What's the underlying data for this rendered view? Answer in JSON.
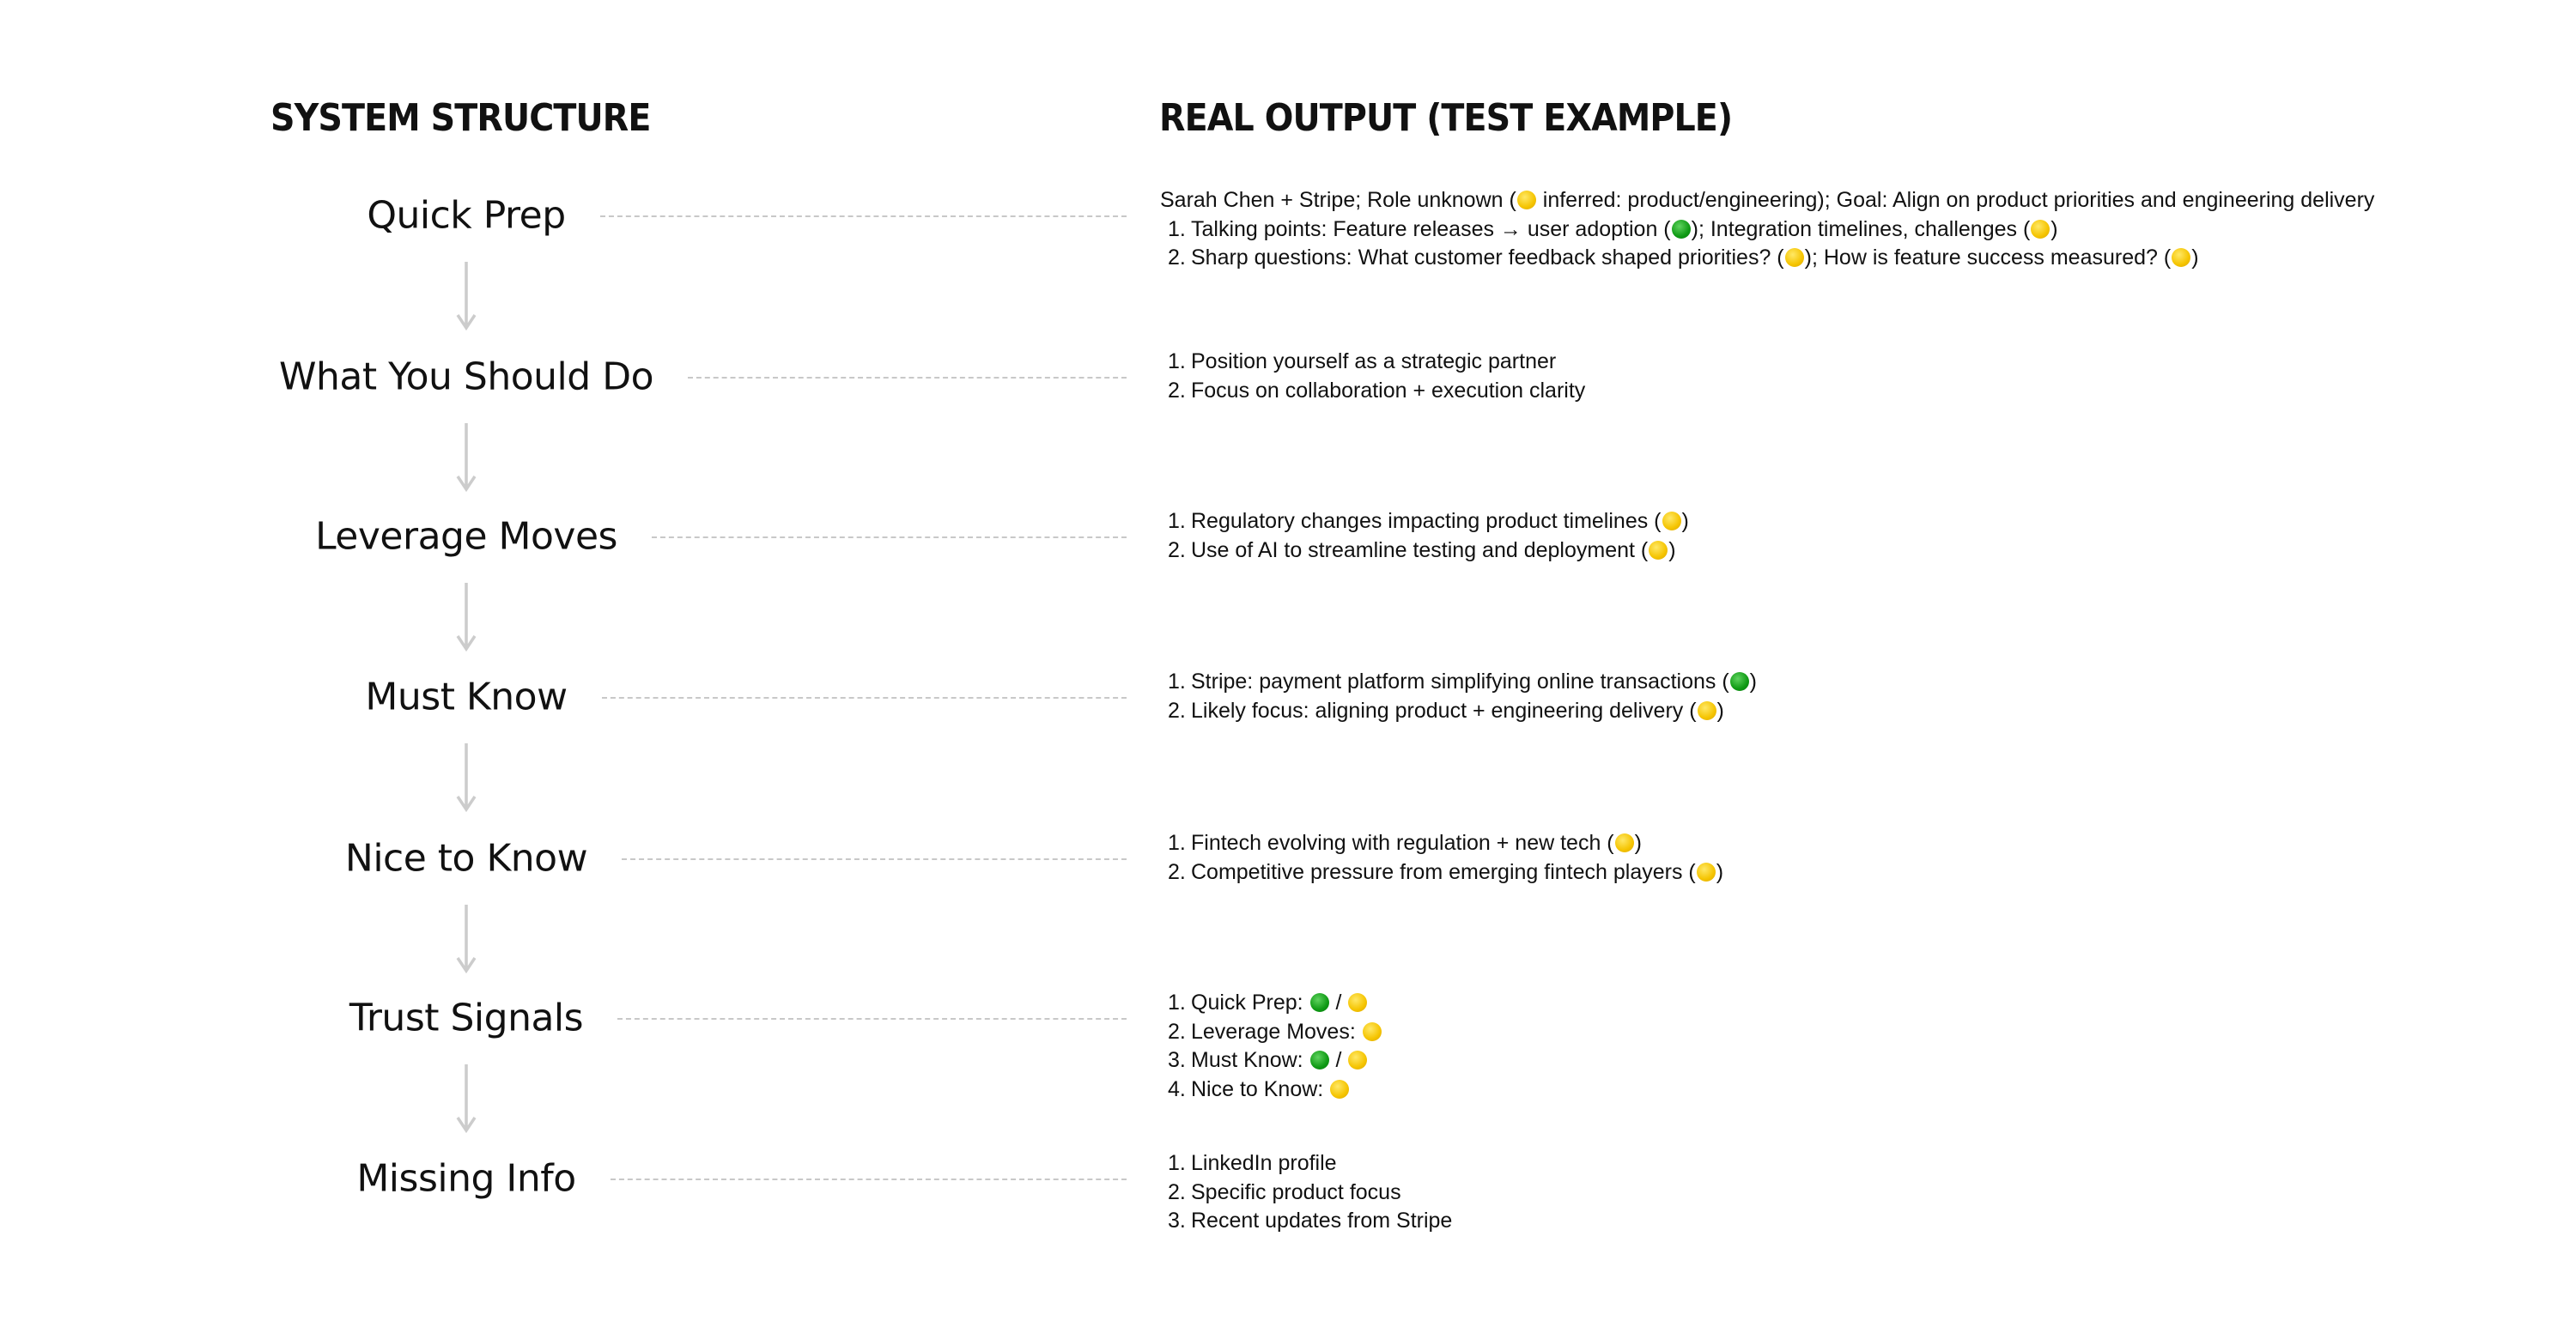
{
  "headings": {
    "left": "SYSTEM STRUCTURE",
    "right": "REAL OUTPUT (TEST EXAMPLE)"
  },
  "colors": {
    "yellow": "#f5c400",
    "green": "#0f9a14",
    "arrow": "#cccccc",
    "dash": "#c8c8c8"
  },
  "sections": [
    {
      "label": "Quick Prep",
      "lines": [
        {
          "parts": [
            {
              "t": "Sarah Chen + Stripe; Role unknown ("
            },
            {
              "dot": "yellow"
            },
            {
              "t": " inferred: product/engineering); Goal: Align on product priorities and engineering delivery"
            }
          ]
        },
        {
          "num": "1.",
          "parts": [
            {
              "t": "Talking points: Feature releases → user adoption ("
            },
            {
              "dot": "green"
            },
            {
              "t": "); Integration timelines, challenges ("
            },
            {
              "dot": "yellow"
            },
            {
              "t": ")"
            }
          ]
        },
        {
          "num": "2.",
          "parts": [
            {
              "t": "Sharp questions: What customer feedback shaped priorities? ("
            },
            {
              "dot": "yellow"
            },
            {
              "t": "); How is feature success measured? ("
            },
            {
              "dot": "yellow"
            },
            {
              "t": ")"
            }
          ]
        }
      ]
    },
    {
      "label": "What You Should Do",
      "lines": [
        {
          "num": "1.",
          "parts": [
            {
              "t": "Position yourself as a strategic partner"
            }
          ]
        },
        {
          "num": "2.",
          "parts": [
            {
              "t": "Focus on collaboration + execution clarity"
            }
          ]
        }
      ]
    },
    {
      "label": "Leverage Moves",
      "lines": [
        {
          "num": "1.",
          "parts": [
            {
              "t": "Regulatory changes impacting product timelines ("
            },
            {
              "dot": "yellow"
            },
            {
              "t": ")"
            }
          ]
        },
        {
          "num": "2.",
          "parts": [
            {
              "t": "Use of AI to streamline testing and deployment ("
            },
            {
              "dot": "yellow"
            },
            {
              "t": ")"
            }
          ]
        }
      ]
    },
    {
      "label": "Must Know",
      "lines": [
        {
          "num": "1.",
          "parts": [
            {
              "t": "Stripe: payment platform simplifying online transactions ("
            },
            {
              "dot": "green"
            },
            {
              "t": ")"
            }
          ]
        },
        {
          "num": "2.",
          "parts": [
            {
              "t": "Likely focus: aligning product + engineering delivery ("
            },
            {
              "dot": "yellow"
            },
            {
              "t": ")"
            }
          ]
        }
      ]
    },
    {
      "label": "Nice to Know",
      "lines": [
        {
          "num": "1.",
          "parts": [
            {
              "t": "Fintech evolving with regulation + new tech ("
            },
            {
              "dot": "yellow"
            },
            {
              "t": ")"
            }
          ]
        },
        {
          "num": "2.",
          "parts": [
            {
              "t": "Competitive pressure from emerging fintech players ("
            },
            {
              "dot": "yellow"
            },
            {
              "t": ")"
            }
          ]
        }
      ]
    },
    {
      "label": "Trust Signals",
      "lines": [
        {
          "num": "1.",
          "parts": [
            {
              "t": "Quick Prep: "
            },
            {
              "dot": "green"
            },
            {
              "t": " / "
            },
            {
              "dot": "yellow"
            }
          ]
        },
        {
          "num": "2.",
          "parts": [
            {
              "t": "Leverage Moves: "
            },
            {
              "dot": "yellow"
            }
          ]
        },
        {
          "num": "3.",
          "parts": [
            {
              "t": "Must Know: "
            },
            {
              "dot": "green"
            },
            {
              "t": " / "
            },
            {
              "dot": "yellow"
            }
          ]
        },
        {
          "num": "4.",
          "parts": [
            {
              "t": "Nice to Know: "
            },
            {
              "dot": "yellow"
            }
          ]
        }
      ]
    },
    {
      "label": "Missing Info",
      "lines": [
        {
          "num": "1.",
          "parts": [
            {
              "t": "LinkedIn profile"
            }
          ]
        },
        {
          "num": "2.",
          "parts": [
            {
              "t": "Specific product focus"
            }
          ]
        },
        {
          "num": "3.",
          "parts": [
            {
              "t": "Recent updates from Stripe"
            }
          ]
        }
      ]
    }
  ]
}
